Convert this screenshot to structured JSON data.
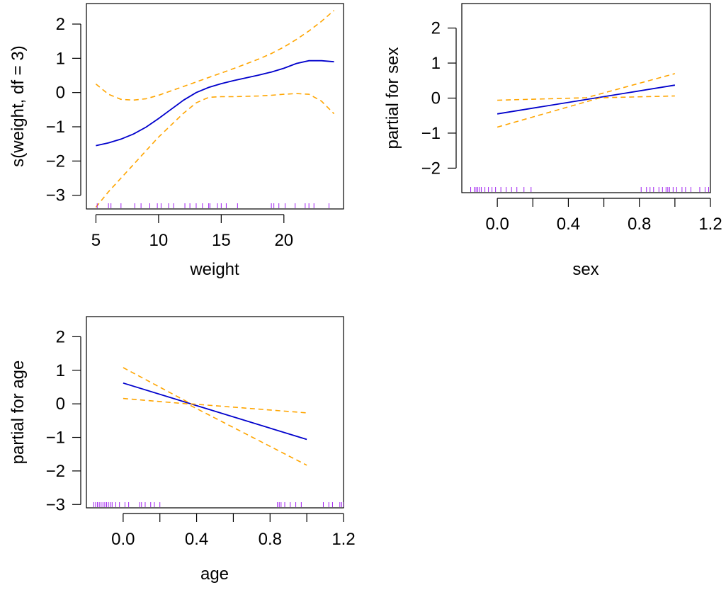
{
  "colors": {
    "fit": "#0000CC",
    "band": "#FFA500",
    "rug": "#A020F0",
    "axis": "#000000"
  },
  "chart_data": [
    {
      "type": "line",
      "xlabel": "weight",
      "ylabel": "s(weight, df = 3)",
      "xlim": [
        4.24,
        24.76
      ],
      "ylim": [
        -3.4,
        2.6
      ],
      "xticks": [
        5,
        10,
        15,
        20
      ],
      "yticks": [
        -3,
        -2,
        -1,
        0,
        1,
        2
      ],
      "series": [
        {
          "role": "fit",
          "x": [
            5,
            6,
            7,
            8,
            9,
            10,
            11,
            12,
            13,
            14,
            15,
            16,
            17,
            18,
            19,
            20,
            21,
            22,
            23,
            24
          ],
          "y": [
            -1.55,
            -1.47,
            -1.36,
            -1.21,
            -1.01,
            -0.76,
            -0.49,
            -0.22,
            0.0,
            0.15,
            0.26,
            0.35,
            0.43,
            0.51,
            0.6,
            0.71,
            0.85,
            0.93,
            0.93,
            0.9
          ]
        },
        {
          "role": "upper",
          "x": [
            5,
            6,
            7,
            8,
            9,
            10,
            11,
            12,
            13,
            14,
            15,
            16,
            17,
            18,
            19,
            20,
            21,
            22,
            23,
            24
          ],
          "y": [
            0.25,
            -0.05,
            -0.2,
            -0.22,
            -0.18,
            -0.08,
            0.05,
            0.18,
            0.31,
            0.44,
            0.57,
            0.7,
            0.84,
            0.98,
            1.14,
            1.33,
            1.55,
            1.8,
            2.08,
            2.4
          ]
        },
        {
          "role": "lower",
          "x": [
            5,
            6,
            7,
            8,
            9,
            10,
            11,
            12,
            13,
            14,
            15,
            16,
            17,
            18,
            19,
            20,
            21,
            22,
            23,
            24
          ],
          "y": [
            -3.35,
            -2.9,
            -2.5,
            -2.1,
            -1.7,
            -1.3,
            -0.95,
            -0.6,
            -0.3,
            -0.14,
            -0.12,
            -0.12,
            -0.11,
            -0.1,
            -0.08,
            -0.05,
            -0.03,
            -0.05,
            -0.25,
            -0.62
          ]
        }
      ],
      "rug": [
        5.1,
        6.0,
        6.2,
        7.0,
        8.1,
        8.6,
        9.3,
        9.9,
        10.2,
        10.8,
        11.2,
        12.1,
        12.5,
        13.0,
        13.5,
        14.0,
        14.1,
        14.7,
        15.0,
        15.4,
        16.3,
        19.0,
        19.2,
        19.6,
        20.1,
        20.9,
        21.7,
        22.0,
        22.4,
        23.6
      ]
    },
    {
      "type": "line",
      "xlabel": "sex",
      "ylabel": "partial for sex",
      "xlim": [
        -0.2,
        1.2
      ],
      "ylim": [
        -2.7,
        2.7
      ],
      "xticks": [
        0.0,
        0.2,
        0.4,
        0.6,
        0.8,
        1.0,
        1.2
      ],
      "xticklabels": [
        "0.0",
        "",
        "0.4",
        "",
        "0.8",
        "",
        "1.2"
      ],
      "yticks": [
        -2,
        -1,
        0,
        1,
        2
      ],
      "series": [
        {
          "role": "fit",
          "x": [
            0,
            1
          ],
          "y": [
            -0.45,
            0.37
          ]
        },
        {
          "role": "upper",
          "x": [
            0,
            0.5,
            1
          ],
          "y": [
            -0.06,
            0.01,
            0.7
          ]
        },
        {
          "role": "lower",
          "x": [
            0,
            0.58,
            1
          ],
          "y": [
            -0.83,
            0.01,
            0.06
          ]
        }
      ],
      "rug": [
        -0.15,
        -0.13,
        -0.12,
        -0.11,
        -0.1,
        -0.09,
        -0.07,
        -0.05,
        -0.03,
        -0.01,
        0.02,
        0.05,
        0.08,
        0.11,
        0.15,
        0.19,
        0.81,
        0.84,
        0.86,
        0.88,
        0.91,
        0.93,
        0.95,
        0.96,
        0.97,
        0.99,
        1.01,
        1.04,
        1.06,
        1.09,
        1.14,
        1.17,
        1.19
      ]
    },
    {
      "type": "line",
      "xlabel": "age",
      "ylabel": "partial for age",
      "xlim": [
        -0.2,
        1.2
      ],
      "ylim": [
        -3.1,
        2.6
      ],
      "xticks": [
        0.0,
        0.2,
        0.4,
        0.6,
        0.8,
        1.0,
        1.2
      ],
      "xticklabels": [
        "0.0",
        "",
        "0.4",
        "",
        "0.8",
        "",
        "1.2"
      ],
      "yticks": [
        -3,
        -2,
        -1,
        0,
        1,
        2
      ],
      "series": [
        {
          "role": "fit",
          "x": [
            0,
            1
          ],
          "y": [
            0.62,
            -1.06
          ]
        },
        {
          "role": "upper",
          "x": [
            0,
            0.37,
            1
          ],
          "y": [
            1.08,
            0.0,
            -0.27
          ]
        },
        {
          "role": "lower",
          "x": [
            0,
            0.35,
            1
          ],
          "y": [
            0.16,
            0.0,
            -1.83
          ]
        }
      ],
      "rug": [
        -0.16,
        -0.15,
        -0.14,
        -0.13,
        -0.12,
        -0.11,
        -0.1,
        -0.09,
        -0.08,
        -0.07,
        -0.06,
        -0.04,
        -0.02,
        0.01,
        0.03,
        0.09,
        0.1,
        0.12,
        0.15,
        0.17,
        0.2,
        0.84,
        0.85,
        0.86,
        0.88,
        0.91,
        0.94,
        0.97,
        1.09,
        1.12,
        1.14,
        1.18,
        1.19,
        1.2
      ]
    }
  ]
}
